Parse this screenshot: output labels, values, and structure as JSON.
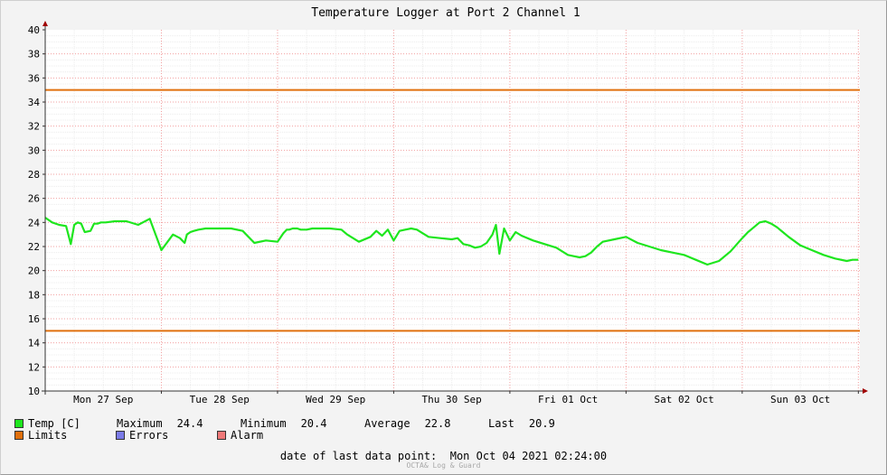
{
  "chart_data": {
    "type": "line",
    "title": "Temperature Logger at Port 2 Channel 1",
    "ylim": [
      10,
      40
    ],
    "yticks": [
      10,
      12,
      14,
      16,
      18,
      20,
      22,
      24,
      26,
      28,
      30,
      32,
      34,
      36,
      38,
      40
    ],
    "x_range_days": [
      0,
      7
    ],
    "x_categories": [
      "Mon 27 Sep",
      "Tue 28 Sep",
      "Wed 29 Sep",
      "Thu 30 Sep",
      "Fri 01 Oct",
      "Sat 02 Oct",
      "Sun 03 Oct"
    ],
    "grid": true,
    "limits": {
      "upper": 35,
      "lower": 15
    },
    "series": [
      {
        "name": "Temp [C]",
        "color": "#1ee61e",
        "x_unit": "days",
        "x": [
          0,
          0.06,
          0.12,
          0.18,
          0.22,
          0.25,
          0.28,
          0.31,
          0.34,
          0.39,
          0.42,
          0.45,
          0.48,
          0.52,
          0.6,
          0.7,
          0.8,
          0.9,
          1.0,
          1.1,
          1.16,
          1.2,
          1.22,
          1.25,
          1.28,
          1.32,
          1.38,
          1.45,
          1.5,
          1.55,
          1.6,
          1.7,
          1.8,
          1.9,
          2.0,
          2.05,
          2.08,
          2.1,
          2.13,
          2.17,
          2.2,
          2.25,
          2.3,
          2.35,
          2.45,
          2.55,
          2.6,
          2.7,
          2.8,
          2.85,
          2.9,
          2.95,
          3.0,
          3.05,
          3.1,
          3.15,
          3.2,
          3.25,
          3.3,
          3.4,
          3.5,
          3.55,
          3.6,
          3.65,
          3.7,
          3.75,
          3.8,
          3.85,
          3.88,
          3.91,
          3.95,
          4.0,
          4.05,
          4.1,
          4.2,
          4.3,
          4.4,
          4.5,
          4.6,
          4.65,
          4.7,
          4.75,
          4.8,
          4.9,
          5.0,
          5.1,
          5.2,
          5.3,
          5.4,
          5.5,
          5.6,
          5.7,
          5.8,
          5.9,
          6.0,
          6.05,
          6.1,
          6.15,
          6.2,
          6.25,
          6.3,
          6.35,
          6.4,
          6.5,
          6.6,
          6.7,
          6.8,
          6.9,
          6.95,
          7.0
        ],
        "values": [
          24.4,
          24.0,
          23.8,
          23.7,
          22.2,
          23.8,
          24.0,
          23.9,
          23.2,
          23.3,
          23.9,
          23.9,
          24.0,
          24.0,
          24.1,
          24.1,
          23.8,
          24.3,
          21.7,
          23.0,
          22.7,
          22.3,
          23.0,
          23.2,
          23.3,
          23.4,
          23.5,
          23.5,
          23.5,
          23.5,
          23.5,
          23.3,
          22.3,
          22.5,
          22.4,
          23.1,
          23.4,
          23.4,
          23.5,
          23.5,
          23.4,
          23.4,
          23.5,
          23.5,
          23.5,
          23.4,
          23.0,
          22.4,
          22.8,
          23.3,
          22.9,
          23.4,
          22.5,
          23.3,
          23.4,
          23.5,
          23.4,
          23.1,
          22.8,
          22.7,
          22.6,
          22.7,
          22.2,
          22.1,
          21.9,
          22.0,
          22.3,
          23.0,
          23.8,
          21.4,
          23.5,
          22.5,
          23.2,
          22.9,
          22.5,
          22.2,
          21.9,
          21.3,
          21.1,
          21.2,
          21.5,
          22.0,
          22.4,
          22.6,
          22.8,
          22.3,
          22.0,
          21.7,
          21.5,
          21.3,
          20.9,
          20.5,
          20.8,
          21.6,
          22.7,
          23.2,
          23.6,
          24.0,
          24.1,
          23.9,
          23.6,
          23.2,
          22.8,
          22.1,
          21.7,
          21.3,
          21.0,
          20.8,
          20.9,
          20.9
        ]
      },
      {
        "name": "Limits",
        "color": "#e0700e"
      }
    ],
    "legend": {
      "temp_label": "Temp [C]",
      "maximum_label": "Maximum",
      "maximum_value": "24.4",
      "minimum_label": "Minimum",
      "minimum_value": "20.4",
      "average_label": "Average",
      "average_value": "22.8",
      "last_label": "Last",
      "last_value": "20.9",
      "limits_label": "Limits",
      "errors_label": "Errors",
      "alarm_label": "Alarm",
      "temp_color": "#1ee61e",
      "limits_color": "#e0700e",
      "errors_color": "#7b7be8",
      "alarm_color": "#f07878"
    },
    "last_data_point": "date of last data point:  Mon Oct 04 2021 02:24:00",
    "watermark": "OCTA& Log & Guard"
  }
}
